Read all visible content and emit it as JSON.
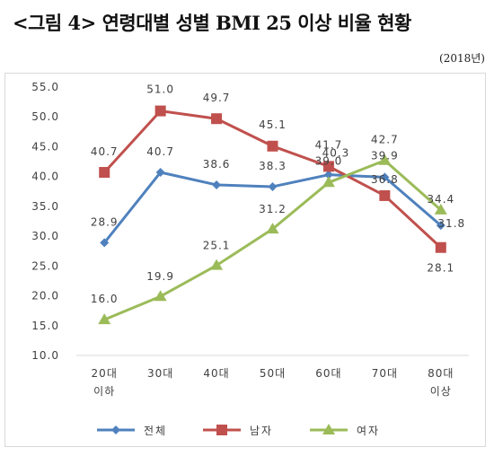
{
  "title": "<그림 4> 연령대별 성별 BMI 25 이상 비율 현황",
  "subtitle": "(2018년)",
  "chart_data": {
    "type": "line",
    "categories": [
      [
        "20대",
        "이하"
      ],
      [
        "30대"
      ],
      [
        "40대"
      ],
      [
        "50대"
      ],
      [
        "60대"
      ],
      [
        "70대"
      ],
      [
        "80대",
        "이상"
      ]
    ],
    "ylim": [
      10.0,
      55.0
    ],
    "yticks": [
      "10.0",
      "15.0",
      "20.0",
      "25.0",
      "30.0",
      "35.0",
      "40.0",
      "45.0",
      "50.0",
      "55.0"
    ],
    "grid": false,
    "legend": "bottom",
    "series": [
      {
        "name": "전체",
        "color": "#4f81bd",
        "marker": "diamond",
        "values": [
          28.9,
          40.7,
          38.6,
          38.3,
          40.3,
          39.9,
          31.8
        ],
        "labels": [
          "28.9",
          "40.7",
          "38.6",
          "38.3",
          "40.3",
          "39.9",
          "31.8"
        ]
      },
      {
        "name": "남자",
        "color": "#c0504d",
        "marker": "square",
        "values": [
          40.7,
          51.0,
          49.7,
          45.1,
          41.7,
          36.8,
          28.1
        ],
        "labels": [
          "40.7",
          "51.0",
          "49.7",
          "45.1",
          "41.7",
          "36.8",
          "28.1"
        ]
      },
      {
        "name": "여자",
        "color": "#9bbb59",
        "marker": "triangle",
        "values": [
          16.0,
          19.9,
          25.1,
          31.2,
          39.0,
          42.7,
          34.4
        ],
        "labels": [
          "16.0",
          "19.9",
          "25.1",
          "31.2",
          "39.0",
          "42.7",
          "34.4"
        ]
      }
    ]
  }
}
